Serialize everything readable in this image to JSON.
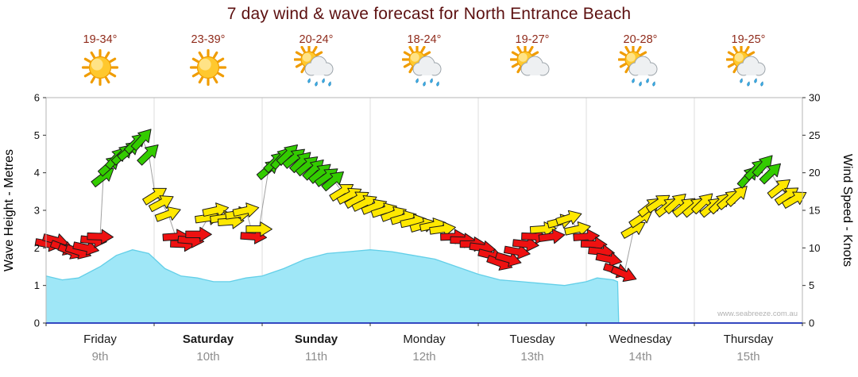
{
  "title": "7 day wind & wave forecast for North Entrance Beach",
  "watermark": "www.seabreeze.com.au",
  "colors": {
    "title": "#5c1010",
    "temp": "#8f2a1a",
    "wind_red": "#ee1111",
    "wind_yellow": "#ffe800",
    "wind_green": "#33cc00",
    "wave_fill": "#9fe7f7",
    "wave_edge": "#63cfe8",
    "axis_line_blue": "#3448c0",
    "grid": "#dcdcdc",
    "border": "#b5b5b5"
  },
  "days": [
    {
      "name": "Friday",
      "date": "9th",
      "temp": "19-34°",
      "icon": "sunny",
      "weekend": false
    },
    {
      "name": "Saturday",
      "date": "10th",
      "temp": "23-39°",
      "icon": "sunny",
      "weekend": true
    },
    {
      "name": "Sunday",
      "date": "11th",
      "temp": "20-24°",
      "icon": "sun-showers",
      "weekend": true
    },
    {
      "name": "Monday",
      "date": "12th",
      "temp": "18-24°",
      "icon": "sun-showers",
      "weekend": false
    },
    {
      "name": "Tuesday",
      "date": "13th",
      "temp": "19-27°",
      "icon": "partly-cloudy",
      "weekend": false
    },
    {
      "name": "Wednesday",
      "date": "14th",
      "temp": "20-28°",
      "icon": "sun-showers",
      "weekend": false
    },
    {
      "name": "Thursday",
      "date": "15th",
      "temp": "19-25°",
      "icon": "sun-showers",
      "weekend": false
    }
  ],
  "chart_data": {
    "type": "line",
    "title": "7 day wind & wave forecast for North Entrance Beach",
    "x_categories": [
      "Friday 9th",
      "Saturday 10th",
      "Sunday 11th",
      "Monday 12th",
      "Tuesday 13th",
      "Wednesday 14th",
      "Thursday 15th"
    ],
    "left_axis": {
      "label": "Wave Height - Metres",
      "min": 0,
      "max": 6,
      "tick_step": 1
    },
    "right_axis": {
      "label": "Wind Speed - Knots",
      "min": 0,
      "max": 30,
      "tick_step": 5
    },
    "grid": "vertical-day-lines",
    "wind_color_rules": {
      "red_below_knots": 12,
      "yellow_upto_knots": 18.4,
      "green_above_knots": 18.4
    },
    "wave_height_m": {
      "name": "Wave Height (metres)",
      "points_t_days_vs_metres": [
        [
          0.0,
          1.25
        ],
        [
          0.15,
          1.15
        ],
        [
          0.3,
          1.2
        ],
        [
          0.5,
          1.5
        ],
        [
          0.65,
          1.8
        ],
        [
          0.8,
          1.95
        ],
        [
          0.95,
          1.85
        ],
        [
          1.1,
          1.45
        ],
        [
          1.25,
          1.25
        ],
        [
          1.4,
          1.2
        ],
        [
          1.55,
          1.1
        ],
        [
          1.7,
          1.1
        ],
        [
          1.85,
          1.2
        ],
        [
          2.0,
          1.25
        ],
        [
          2.2,
          1.45
        ],
        [
          2.4,
          1.7
        ],
        [
          2.6,
          1.85
        ],
        [
          2.8,
          1.9
        ],
        [
          3.0,
          1.95
        ],
        [
          3.2,
          1.9
        ],
        [
          3.4,
          1.8
        ],
        [
          3.6,
          1.7
        ],
        [
          3.8,
          1.5
        ],
        [
          4.0,
          1.3
        ],
        [
          4.2,
          1.15
        ],
        [
          4.4,
          1.1
        ],
        [
          4.6,
          1.05
        ],
        [
          4.8,
          1.0
        ],
        [
          5.0,
          1.1
        ],
        [
          5.1,
          1.2
        ],
        [
          5.25,
          1.15
        ],
        [
          5.29,
          1.1
        ],
        [
          5.3,
          0
        ]
      ]
    },
    "wind_arrows": {
      "name": "Wind Speed (knots) with direction",
      "format": "[t_days, knots, direction_deg]",
      "points": [
        [
          0.02,
          10.5,
          100
        ],
        [
          0.09,
          11,
          105
        ],
        [
          0.16,
          10,
          110
        ],
        [
          0.23,
          9.5,
          112
        ],
        [
          0.3,
          9.5,
          108
        ],
        [
          0.37,
          10,
          102
        ],
        [
          0.44,
          11,
          96
        ],
        [
          0.5,
          11.5,
          92
        ],
        [
          0.53,
          19.5,
          52
        ],
        [
          0.59,
          21,
          48
        ],
        [
          0.65,
          22,
          42
        ],
        [
          0.71,
          22.5,
          46
        ],
        [
          0.77,
          23,
          50
        ],
        [
          0.83,
          24,
          46
        ],
        [
          0.89,
          24.5,
          42
        ],
        [
          0.95,
          22.5,
          46
        ],
        [
          1.01,
          17,
          58
        ],
        [
          1.07,
          16,
          62
        ],
        [
          1.13,
          14.5,
          70
        ],
        [
          1.2,
          11.5,
          86
        ],
        [
          1.27,
          10.5,
          92
        ],
        [
          1.34,
          11,
          95
        ],
        [
          1.41,
          11.8,
          90
        ],
        [
          1.5,
          14,
          82
        ],
        [
          1.57,
          15,
          78
        ],
        [
          1.64,
          14,
          82
        ],
        [
          1.71,
          13.5,
          86
        ],
        [
          1.78,
          14.5,
          82
        ],
        [
          1.85,
          15,
          78
        ],
        [
          1.92,
          11.5,
          94
        ],
        [
          1.97,
          12.5,
          90
        ],
        [
          2.06,
          20.5,
          50
        ],
        [
          2.12,
          21.5,
          46
        ],
        [
          2.18,
          22,
          42
        ],
        [
          2.24,
          22.5,
          46
        ],
        [
          2.3,
          22,
          50
        ],
        [
          2.36,
          21.5,
          46
        ],
        [
          2.42,
          21,
          50
        ],
        [
          2.48,
          20.5,
          46
        ],
        [
          2.54,
          20,
          50
        ],
        [
          2.6,
          19.5,
          54
        ],
        [
          2.66,
          19,
          50
        ],
        [
          2.74,
          17.5,
          58
        ],
        [
          2.81,
          17,
          62
        ],
        [
          2.88,
          16.5,
          60
        ],
        [
          2.95,
          16,
          64
        ],
        [
          3.04,
          15.5,
          68
        ],
        [
          3.13,
          15,
          72
        ],
        [
          3.22,
          14.5,
          70
        ],
        [
          3.31,
          14,
          74
        ],
        [
          3.4,
          13.5,
          78
        ],
        [
          3.49,
          13,
          74
        ],
        [
          3.58,
          13,
          78
        ],
        [
          3.67,
          12.5,
          82
        ],
        [
          3.77,
          11.5,
          88
        ],
        [
          3.86,
          11,
          92
        ],
        [
          3.95,
          10.5,
          90
        ],
        [
          4.04,
          10,
          98
        ],
        [
          4.12,
          9,
          104
        ],
        [
          4.2,
          8,
          110
        ],
        [
          4.28,
          8.5,
          106
        ],
        [
          4.36,
          9.5,
          100
        ],
        [
          4.44,
          10.5,
          96
        ],
        [
          4.52,
          11.5,
          92
        ],
        [
          4.6,
          12.5,
          86
        ],
        [
          4.68,
          11.5,
          82
        ],
        [
          4.76,
          13.5,
          76
        ],
        [
          4.84,
          14,
          72
        ],
        [
          4.92,
          12.5,
          78
        ],
        [
          5.0,
          11.5,
          86
        ],
        [
          5.07,
          10.5,
          92
        ],
        [
          5.14,
          9.5,
          96
        ],
        [
          5.21,
          8.5,
          102
        ],
        [
          5.28,
          7,
          108
        ],
        [
          5.35,
          6.5,
          112
        ],
        [
          5.44,
          12.5,
          60
        ],
        [
          5.51,
          14,
          56
        ],
        [
          5.59,
          15.5,
          52
        ],
        [
          5.67,
          16,
          56
        ],
        [
          5.75,
          15.5,
          52
        ],
        [
          5.83,
          16,
          48
        ],
        [
          5.91,
          15.5,
          52
        ],
        [
          6.0,
          15.5,
          50
        ],
        [
          6.08,
          16,
          46
        ],
        [
          6.16,
          15.5,
          50
        ],
        [
          6.24,
          16,
          46
        ],
        [
          6.32,
          16.5,
          50
        ],
        [
          6.4,
          17,
          46
        ],
        [
          6.5,
          19.5,
          42
        ],
        [
          6.57,
          20.5,
          46
        ],
        [
          6.64,
          21,
          42
        ],
        [
          6.71,
          20,
          46
        ],
        [
          6.79,
          18,
          52
        ],
        [
          6.86,
          17,
          56
        ],
        [
          6.93,
          16.5,
          60
        ]
      ]
    }
  }
}
